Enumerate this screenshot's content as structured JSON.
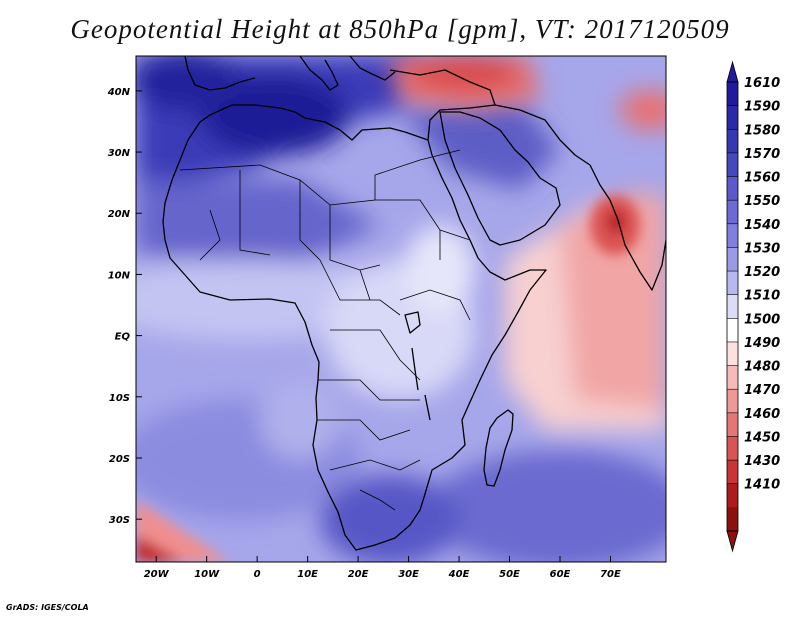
{
  "title": "Geopotential Height at 850hPa [gpm], VT: 2017120509",
  "credit": "GrADS: IGES/COLA",
  "map": {
    "lat_ticks": [
      "40N",
      "30N",
      "20N",
      "10N",
      "EQ",
      "10S",
      "20S",
      "30S"
    ],
    "lon_ticks": [
      "20W",
      "10W",
      "0",
      "10E",
      "20E",
      "30E",
      "40E",
      "50E",
      "60E",
      "70E"
    ]
  },
  "colorbar": {
    "labels": [
      "1610",
      "1590",
      "1580",
      "1570",
      "1560",
      "1550",
      "1540",
      "1530",
      "1520",
      "1510",
      "1500",
      "1490",
      "1480",
      "1470",
      "1460",
      "1450",
      "1430",
      "1410"
    ],
    "colors": [
      "#1f1aa0",
      "#2a29a8",
      "#3737b4",
      "#4747c0",
      "#5a5aca",
      "#6b6bd3",
      "#8080dc",
      "#9a9ae6",
      "#b8b8f0",
      "#dcdcf8",
      "#ffffff",
      "#fde0e0",
      "#f7baba",
      "#ef9898",
      "#e47676",
      "#d85555",
      "#c93535",
      "#ad1c1c",
      "#8b1010"
    ]
  }
}
